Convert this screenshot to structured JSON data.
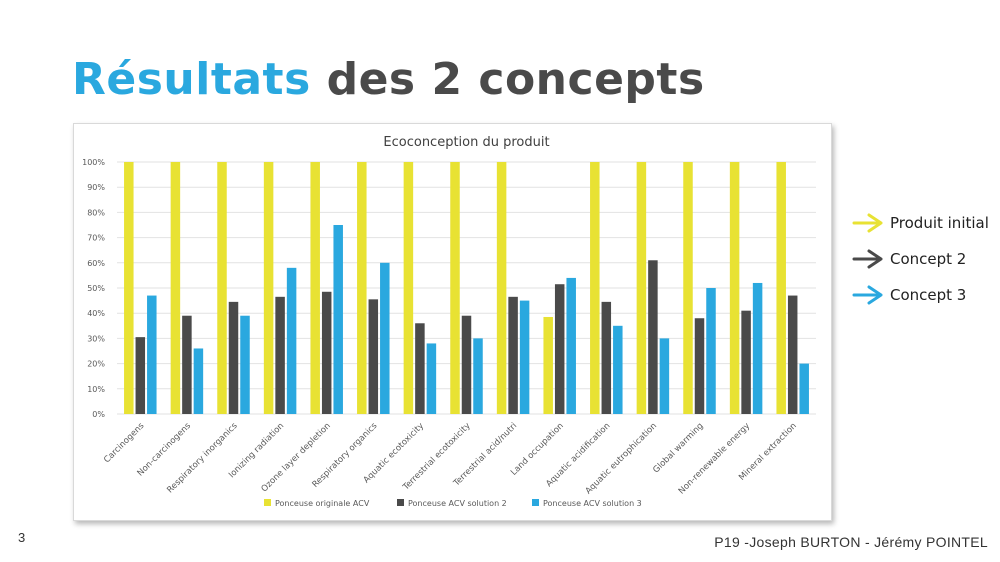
{
  "slide": {
    "title_accent": "Résultats",
    "title_rest": "des 2 concepts",
    "page_number": "3",
    "footer": "P19 -Joseph BURTON - Jérémy POINTEL"
  },
  "side_legend": [
    {
      "label": "Produit initial",
      "color": "#e8e233",
      "icon": "arrow-right-icon"
    },
    {
      "label": "Concept 2",
      "color": "#4a4a4a",
      "icon": "arrow-right-icon"
    },
    {
      "label": "Concept 3",
      "color": "#2aa8df",
      "icon": "arrow-right-icon"
    }
  ],
  "chart_data": {
    "type": "bar",
    "title": "Ecoconception du produit",
    "categories": [
      "Carcinogens",
      "Non-carcinogens",
      "Respiratory inorganics",
      "Ionizing radiation",
      "Ozone layer depletion",
      "Respiratory organics",
      "Aquatic ecotoxicity",
      "Terrestrial ecotoxicity",
      "Terrestrial acid/nutri",
      "Land occupation",
      "Aquatic acidification",
      "Aquatic eutrophication",
      "Global warming",
      "Non-renewable energy",
      "Mineral extraction"
    ],
    "series": [
      {
        "name": "Ponceuse originale ACV",
        "color": "#e8e233",
        "values": [
          100,
          100,
          100,
          100,
          100,
          100,
          100,
          100,
          100,
          38.5,
          100,
          100,
          100,
          100,
          100
        ]
      },
      {
        "name": "Ponceuse ACV solution 2",
        "color": "#4a4a4a",
        "values": [
          30.5,
          39,
          44.5,
          46.5,
          48.5,
          45.5,
          36,
          39,
          46.5,
          51.5,
          44.5,
          61,
          38,
          41,
          47
        ]
      },
      {
        "name": "Ponceuse ACV solution 3",
        "color": "#2aa8df",
        "values": [
          47,
          26,
          39,
          58,
          75,
          60,
          28,
          30,
          45,
          54,
          35,
          30,
          50,
          52,
          20
        ]
      }
    ],
    "ylim": [
      0,
      100
    ],
    "yticks": [
      "0%",
      "10%",
      "20%",
      "30%",
      "40%",
      "50%",
      "60%",
      "70%",
      "80%",
      "90%",
      "100%"
    ],
    "xlabel": "",
    "ylabel": "",
    "grid": true,
    "legend_position": "bottom"
  }
}
